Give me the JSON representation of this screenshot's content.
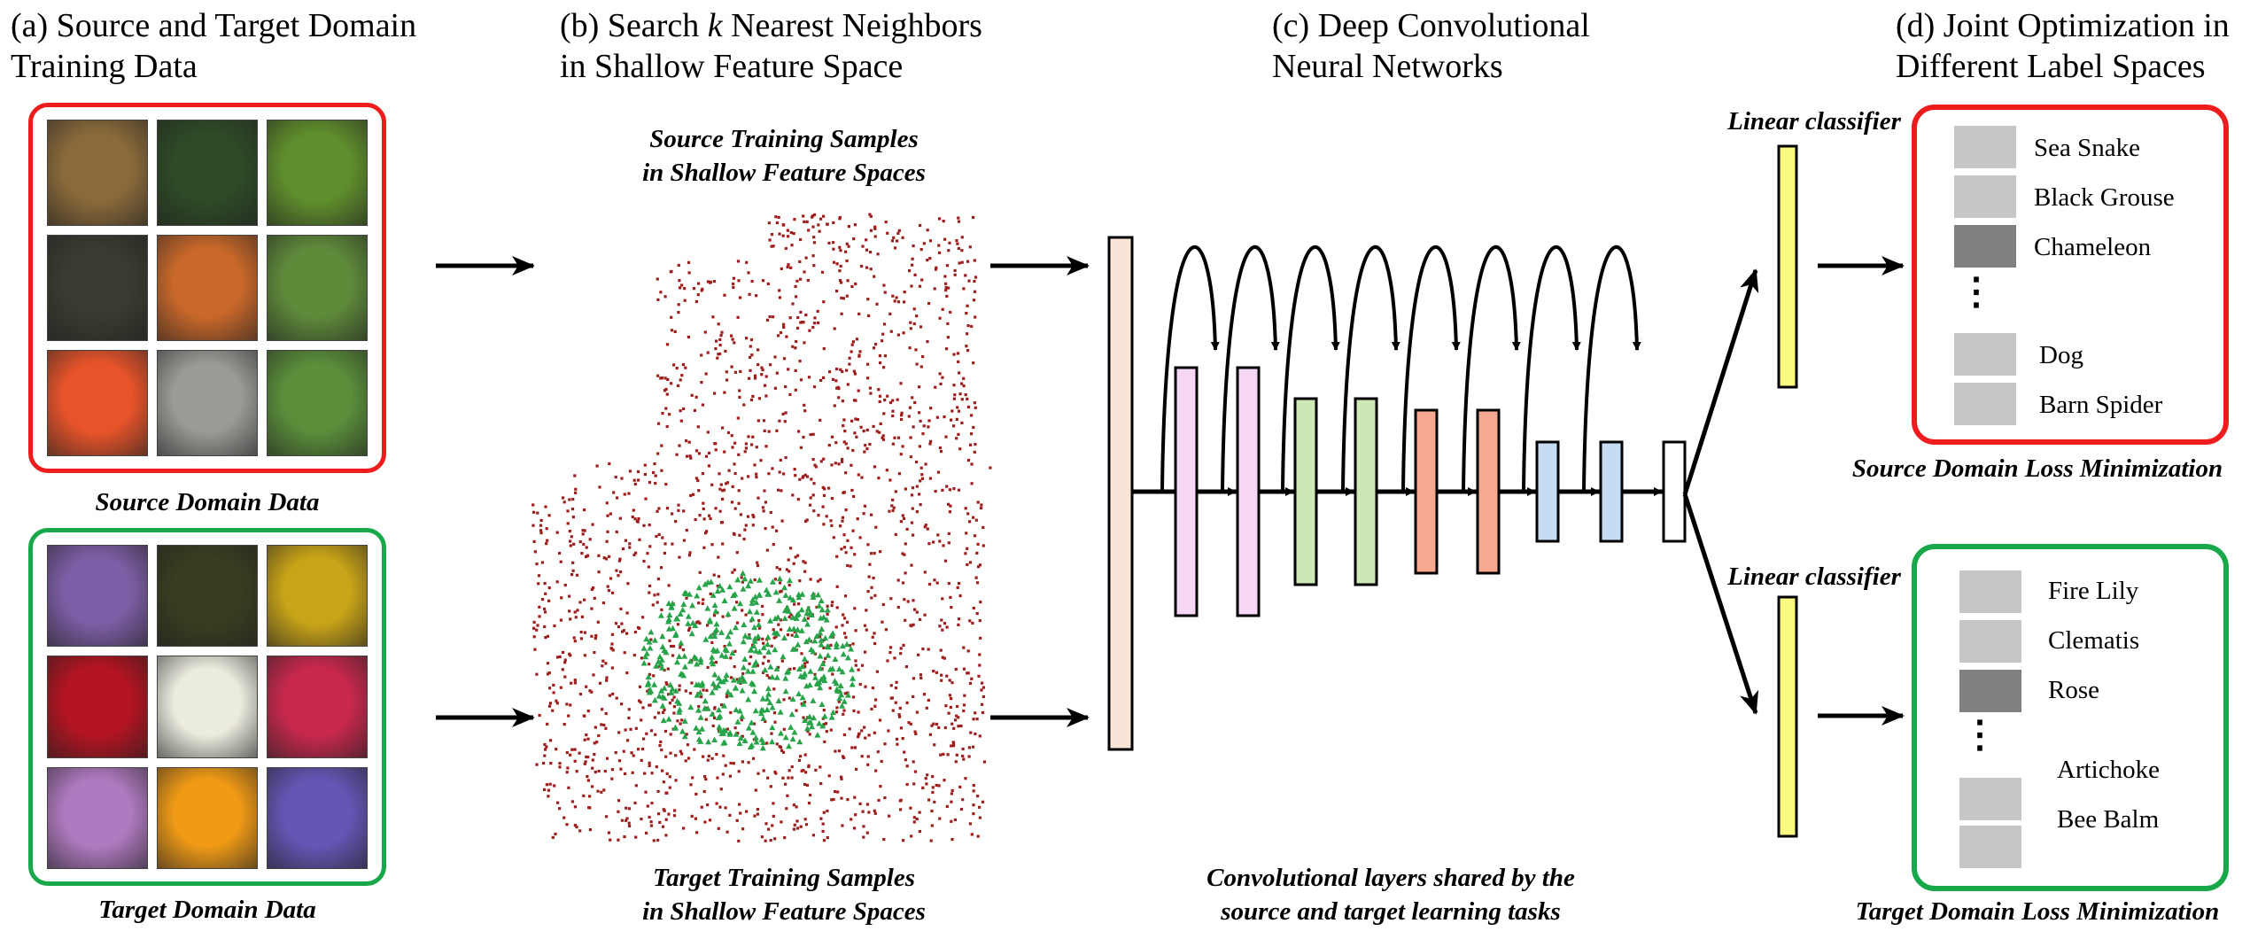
{
  "panels": {
    "a": {
      "heading_line1": "(a) Source and Target Domain",
      "heading_line2": "Training Data"
    },
    "b": {
      "heading_line1_pre": "(b) Search ",
      "heading_k": "k",
      "heading_line1_post": " Nearest Neighbors",
      "heading_line2": "in Shallow Feature Space"
    },
    "c": {
      "heading_line1": "(c) Deep Convolutional",
      "heading_line2": "Neural Networks"
    },
    "d": {
      "heading_line1": "(d) Joint Optimization in",
      "heading_line2": "Different Label Spaces"
    }
  },
  "source_domain": {
    "caption": "Source Domain Data",
    "border_color": "#ee1c1c",
    "thumb_colors": [
      "#8a6a3a",
      "#2e4a26",
      "#5f8e2c",
      "#3a3a30",
      "#c9682a",
      "#5e8a3a",
      "#e8542a",
      "#9a9a96",
      "#5a8e3a"
    ]
  },
  "target_domain": {
    "caption": "Target Domain Data",
    "border_color": "#18a84a",
    "thumb_colors": [
      "#7d5ea6",
      "#3a3c20",
      "#c9a418",
      "#b31421",
      "#ecebdf",
      "#c8284d",
      "#b07ac0",
      "#f09a16",
      "#6555b4"
    ]
  },
  "feature_space": {
    "top_caption_line1": "Source Training Samples",
    "top_caption_line2": "in Shallow Feature Spaces",
    "bottom_caption_line1": "Target Training Samples",
    "bottom_caption_line2": "in Shallow Feature Spaces",
    "source_color": "#9e1e1e",
    "target_color": "#27a44a"
  },
  "network": {
    "caption_line1": "Convolutional layers shared by the",
    "caption_line2": "source and target learning tasks",
    "input_color": "#f9e4d8",
    "layer_colors": [
      "#f6d8f6",
      "#f6d8f6",
      "#cde8b4",
      "#cde8b4",
      "#f6a890",
      "#f6a890",
      "#c6dcf2",
      "#c6dcf2",
      "#ffffff"
    ]
  },
  "source_output": {
    "classifier_label": "Linear classifier",
    "classifier_color": "#fafa80",
    "labels": [
      "Sea Snake",
      "Black Grouse",
      "Chameleon",
      "Dog",
      "Barn Spider"
    ],
    "swatch_colors": [
      "#c6c6c6",
      "#c6c6c6",
      "#808080",
      "#c6c6c6",
      "#c6c6c6"
    ],
    "ellipsis": "⋮",
    "caption": "Source Domain Loss Minimization",
    "border_color": "#ee1c1c"
  },
  "target_output": {
    "classifier_label": "Linear classifier",
    "classifier_color": "#fafa80",
    "labels": [
      "Fire Lily",
      "Clematis",
      "Rose",
      "Artichoke",
      "Bee Balm"
    ],
    "swatch_colors": [
      "#c6c6c6",
      "#c6c6c6",
      "#808080",
      "#c6c6c6",
      "#c6c6c6"
    ],
    "ellipsis": "⋮",
    "caption": "Target Domain Loss Minimization",
    "border_color": "#18a84a"
  }
}
